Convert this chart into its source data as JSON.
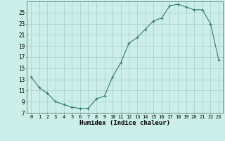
{
  "x": [
    0,
    1,
    2,
    3,
    4,
    5,
    6,
    7,
    8,
    9,
    10,
    11,
    12,
    13,
    14,
    15,
    16,
    17,
    18,
    19,
    20,
    21,
    22,
    23
  ],
  "y": [
    13.5,
    11.5,
    10.5,
    9.0,
    8.5,
    8.0,
    7.8,
    7.8,
    9.5,
    10.0,
    13.5,
    16.0,
    19.5,
    20.5,
    22.0,
    23.5,
    24.0,
    26.2,
    26.5,
    26.0,
    25.5,
    25.5,
    23.0,
    16.5
  ],
  "xlabel": "Humidex (Indice chaleur)",
  "ylim": [
    7,
    27
  ],
  "xlim": [
    -0.5,
    23.5
  ],
  "yticks": [
    7,
    9,
    11,
    13,
    15,
    17,
    19,
    21,
    23,
    25
  ],
  "xticks": [
    0,
    1,
    2,
    3,
    4,
    5,
    6,
    7,
    8,
    9,
    10,
    11,
    12,
    13,
    14,
    15,
    16,
    17,
    18,
    19,
    20,
    21,
    22,
    23
  ],
  "line_color": "#2e7d6e",
  "marker": "+",
  "bg_color": "#cceee8",
  "grid_color": "#aacccc"
}
